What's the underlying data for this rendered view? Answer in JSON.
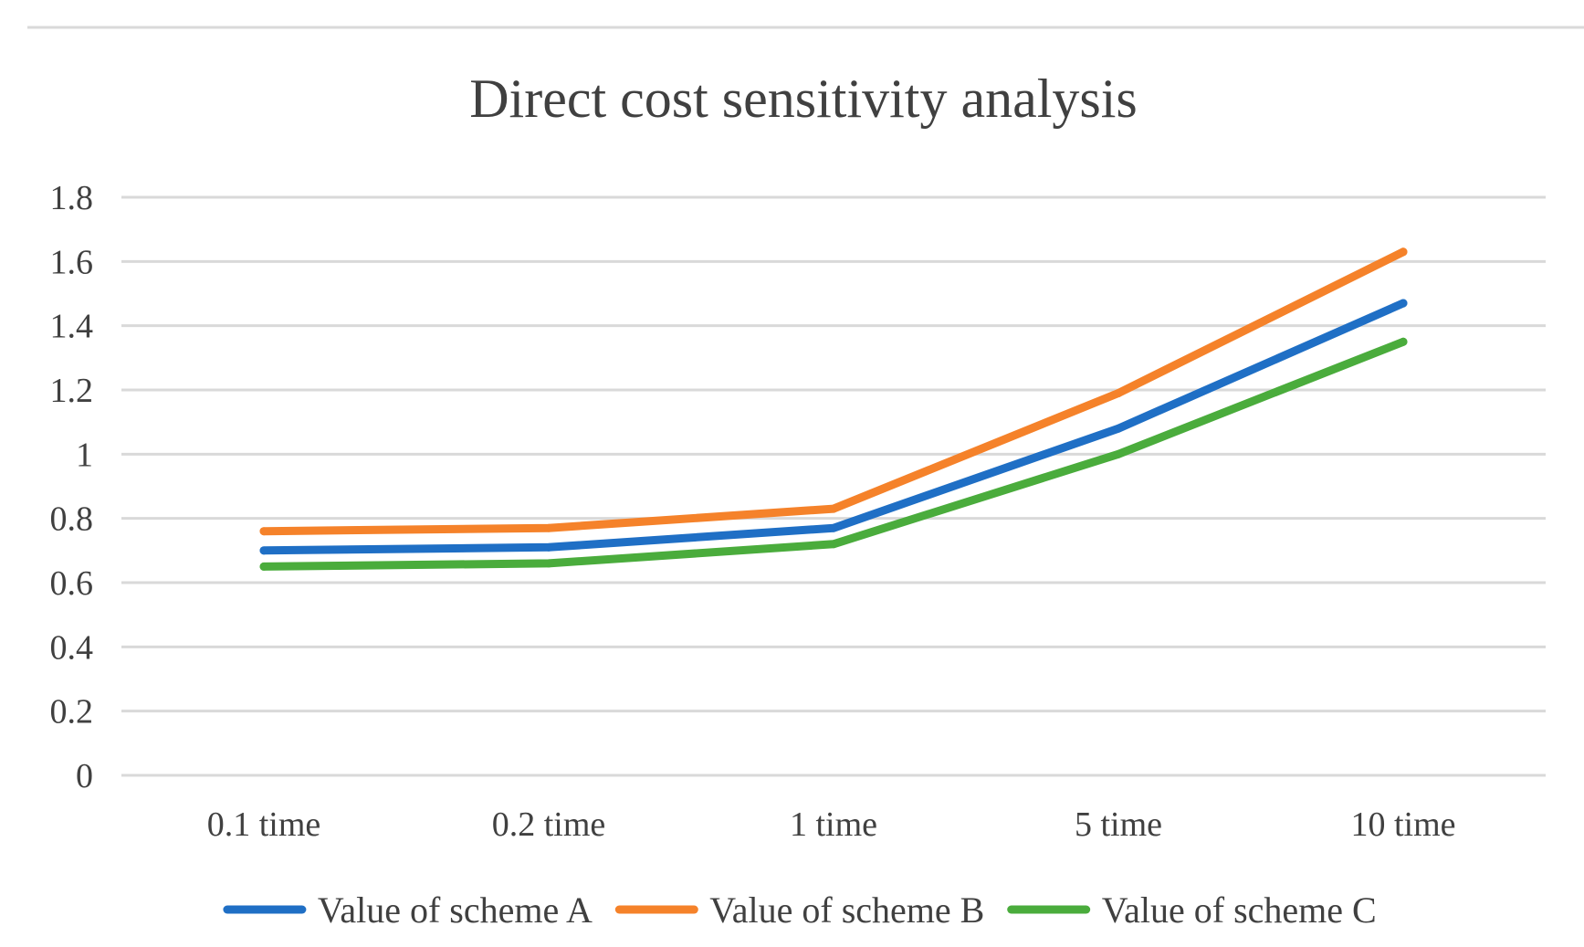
{
  "chart_data": {
    "type": "line",
    "title": "Direct cost sensitivity analysis",
    "xlabel": "",
    "ylabel": "",
    "categories": [
      "0.1 time",
      "0.2 time",
      "1 time",
      "5 time",
      "10 time"
    ],
    "y_ticks": [
      "0",
      "0.2",
      "0.4",
      "0.6",
      "0.8",
      "1",
      "1.2",
      "1.4",
      "1.6",
      "1.8"
    ],
    "ylim": [
      0,
      1.8
    ],
    "grid": true,
    "legend_position": "bottom",
    "series": [
      {
        "name": "Value of scheme A",
        "color": "#1f6fc5",
        "values": [
          0.7,
          0.71,
          0.77,
          1.08,
          1.47
        ]
      },
      {
        "name": "Value of scheme B",
        "color": "#f5822a",
        "values": [
          0.76,
          0.77,
          0.83,
          1.19,
          1.63
        ]
      },
      {
        "name": "Value of scheme C",
        "color": "#4aac3c",
        "values": [
          0.65,
          0.66,
          0.72,
          1.0,
          1.35
        ]
      }
    ]
  }
}
